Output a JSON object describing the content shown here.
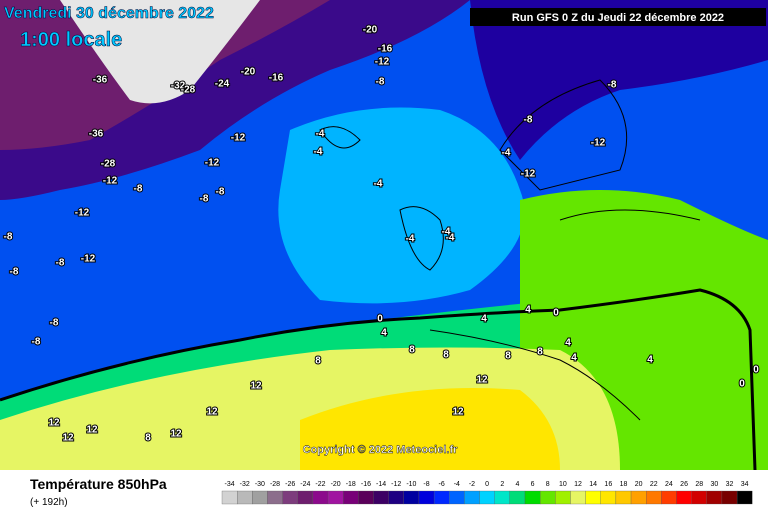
{
  "header": {
    "valid_date": "Vendredi 30 décembre 2022",
    "valid_time": "1:00 locale",
    "run": "Run GFS 0 Z du Jeudi 22 décembre 2022",
    "copyright": "Copyright © 2022 Meteociel.fr"
  },
  "footer": {
    "title": "Température 850hPa",
    "lead": "(+ 192h)"
  },
  "map_labels": [
    -20,
    -16,
    -12,
    -8,
    -20,
    -16,
    -24,
    -32,
    -28,
    -36,
    -36,
    -28,
    -12,
    -12,
    -12,
    -8,
    -8,
    -8,
    -12,
    -8,
    -12,
    -8,
    -8,
    -8,
    -8,
    -4,
    -4,
    -4,
    -8,
    -12,
    -8,
    -12,
    -4,
    -4,
    -4,
    -4,
    0,
    4,
    4,
    0,
    4,
    8,
    8,
    8,
    8,
    8,
    12,
    12,
    12,
    12,
    12,
    12,
    12,
    4,
    4,
    4,
    0,
    0,
    8,
    12
  ],
  "legend": {
    "ticks": [
      -34,
      -32,
      -30,
      -28,
      -26,
      -24,
      -22,
      -20,
      -18,
      -16,
      -14,
      -12,
      -10,
      -8,
      -6,
      -4,
      -2,
      0,
      2,
      4,
      6,
      8,
      10,
      12,
      14,
      16,
      18,
      20,
      22,
      24,
      26,
      28,
      30,
      32,
      34
    ],
    "colors": [
      "#d2d2d2",
      "#b9b9b9",
      "#a0a0a0",
      "#8c6e8c",
      "#7d3c7d",
      "#6e1e6e",
      "#8c0a8c",
      "#a014a0",
      "#780078",
      "#5a005a",
      "#3c0064",
      "#1e0082",
      "#0000a0",
      "#0000dc",
      "#0028ff",
      "#0064ff",
      "#00a0ff",
      "#00d2ff",
      "#00e6c8",
      "#00dc78",
      "#00dc00",
      "#64e600",
      "#a0f000",
      "#e6f564",
      "#ffff00",
      "#ffe600",
      "#ffc800",
      "#ffa000",
      "#ff7800",
      "#ff3c00",
      "#ff0000",
      "#d20000",
      "#a00000",
      "#780000",
      "#000000"
    ]
  }
}
